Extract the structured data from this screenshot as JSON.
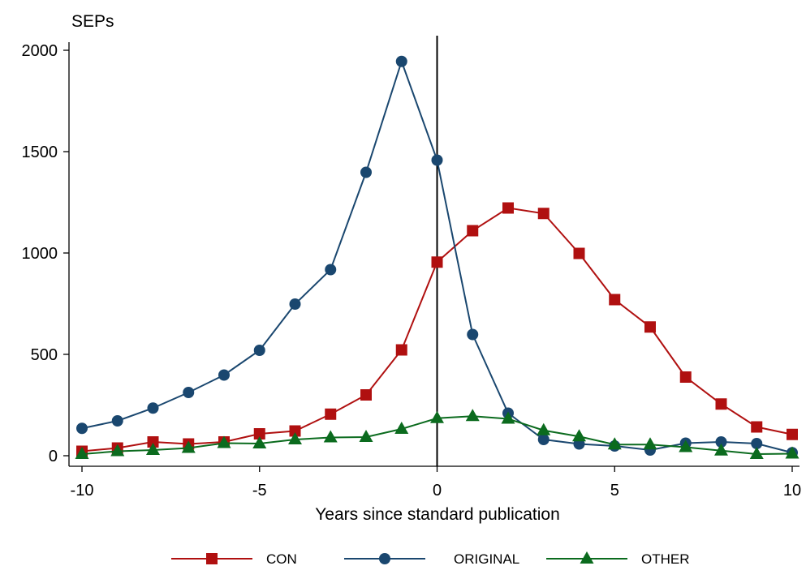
{
  "chart_data": {
    "type": "line",
    "xlabel": "Years since standard publication",
    "ylabel": "SEPs",
    "xlim": [
      -10,
      10
    ],
    "ylim": [
      0,
      2000
    ],
    "x_ticks": [
      -10,
      -5,
      0,
      5,
      10
    ],
    "y_ticks": [
      0,
      500,
      1000,
      1500,
      2000
    ],
    "grid": false,
    "legend_position": "bottom",
    "reference_line_x": 0,
    "x": [
      -10,
      -9,
      -8,
      -7,
      -6,
      -5,
      -4,
      -3,
      -2,
      -1,
      0,
      1,
      2,
      3,
      4,
      5,
      6,
      7,
      8,
      9,
      10
    ],
    "series": [
      {
        "name": "CON",
        "color": "#b01010",
        "marker": "square",
        "values": [
          22,
          38,
          68,
          58,
          68,
          108,
          122,
          205,
          300,
          522,
          955,
          1110,
          1222,
          1195,
          998,
          770,
          635,
          388,
          255,
          142,
          105
        ]
      },
      {
        "name": "ORIGINAL",
        "color": "#1a476f",
        "marker": "circle",
        "values": [
          135,
          172,
          235,
          312,
          398,
          520,
          748,
          918,
          1398,
          1945,
          1458,
          598,
          210,
          80,
          58,
          48,
          28,
          62,
          68,
          60,
          15
        ]
      },
      {
        "name": "OTHER",
        "color": "#0b6b1e",
        "marker": "triangle",
        "values": [
          8,
          22,
          28,
          38,
          62,
          60,
          80,
          90,
          92,
          132,
          185,
          195,
          182,
          125,
          95,
          55,
          55,
          42,
          25,
          8,
          10
        ]
      }
    ]
  }
}
